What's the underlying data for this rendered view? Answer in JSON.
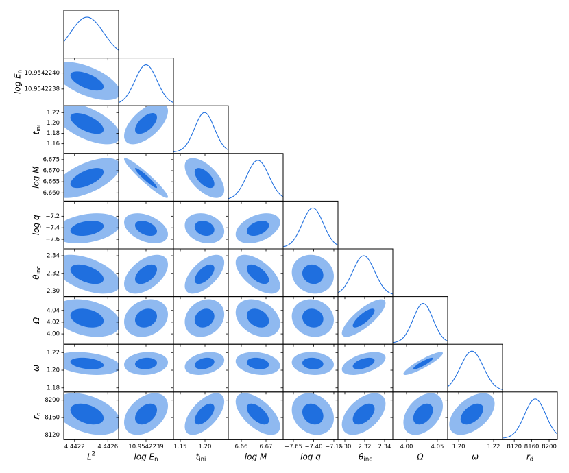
{
  "chart_data": {
    "type": "corner",
    "outer_color": "#8fb9f0",
    "inner_color": "#1f6fdf",
    "line_color": "#1f6fdf",
    "params": [
      {
        "label": {
          "text": "L",
          "sup": "2"
        },
        "xlim": [
          4.44207,
          4.44273
        ],
        "xticks": [
          4.4422,
          4.4426
        ],
        "mean": 4.44235,
        "sd": 0.0002
      },
      {
        "label": {
          "text": "log E",
          "sub": "n"
        },
        "xlim": [
          10.9542236,
          10.9542242
        ],
        "ylim": [
          10.95422359,
          10.95422419
        ],
        "xticks": [
          10.9542239
        ],
        "yticks": [
          {
            "value": 10.954224,
            "label": "10.9542240"
          },
          10.9542238
        ],
        "mean": 10.9542239,
        "sd": 1.2e-07
      },
      {
        "label": {
          "text": "t",
          "sub": "ini"
        },
        "xlim": [
          1.1361,
          1.2472
        ],
        "ylim": [
          1.1413,
          1.2333
        ],
        "xticks": [
          1.15,
          {
            "value": 1.2,
            "label": "1.20"
          }
        ],
        "yticks": [
          1.22,
          {
            "value": 1.2,
            "label": "1.20"
          },
          1.18,
          1.16
        ],
        "mean": 1.199,
        "sd": 0.02
      },
      {
        "label": {
          "text": "log M"
        },
        "xlim": [
          6.65472,
          6.67694
        ],
        "ylim": [
          6.65625,
          6.6778
        ],
        "xticks": [
          6.66,
          6.67
        ],
        "yticks": [
          6.675,
          {
            "value": 6.67,
            "label": "6.670"
          },
          6.665,
          {
            "value": 6.66,
            "label": "6.660"
          }
        ],
        "mean": 6.6667,
        "sd": 0.0045
      },
      {
        "label": {
          "text": "log q"
        },
        "xlim": [
          -7.777,
          -7.099
        ],
        "ylim": [
          -7.765,
          -6.94
        ],
        "xticks": [
          {
            "value": -7.65,
            "label": "−7.65"
          },
          {
            "value": -7.4,
            "label": "−7.40"
          },
          {
            "value": -7.15,
            "label": "−7.15"
          }
        ],
        "yticks": [
          {
            "value": -7.2,
            "label": "−7.2"
          },
          {
            "value": -7.4,
            "label": "−7.4"
          },
          {
            "value": -7.6,
            "label": "−7.6"
          }
        ],
        "mean": -7.41,
        "sd": 0.13
      },
      {
        "label": {
          "text": "θ",
          "sub": "inc"
        },
        "xlim": [
          2.2931,
          2.3483
        ],
        "ylim": [
          2.2937,
          2.3478
        ],
        "xticks": [
          {
            "value": 2.3,
            "label": "2.30"
          },
          2.32,
          2.34
        ],
        "yticks": [
          2.34,
          2.32,
          {
            "value": 2.3,
            "label": "2.30"
          }
        ],
        "mean": 2.319,
        "sd": 0.011
      },
      {
        "label": {
          "text": "Ω"
        },
        "xlim": [
          3.9778,
          4.0667
        ],
        "ylim": [
          3.9824,
          4.0635
        ],
        "xticks": [
          {
            "value": 4,
            "label": "4.00"
          },
          4.05
        ],
        "yticks": [
          4.04,
          4.02,
          {
            "value": 4,
            "label": "4.00"
          }
        ],
        "mean": 4.0269,
        "sd": 0.016
      },
      {
        "label": {
          "text": "ω"
        },
        "xlim": [
          1.1937,
          1.2251
        ],
        "ylim": [
          1.1753,
          1.2294
        ],
        "xticks": [
          {
            "value": 1.2,
            "label": "1.20"
          },
          1.22
        ],
        "yticks": [
          1.22,
          {
            "value": 1.2,
            "label": "1.20"
          },
          1.18
        ],
        "mean": 1.2076,
        "sd": 0.0065
      },
      {
        "label": {
          "text": "r",
          "sub": "d"
        },
        "xlim": [
          8093,
          8218.8
        ],
        "ylim": [
          8109,
          8218.8
        ],
        "xticks": [
          8120,
          8160,
          8200
        ],
        "yticks": [
          8200,
          8160,
          8120
        ],
        "mean": 8168,
        "sd": 24
      }
    ],
    "correlations": [
      [
        -0.6
      ],
      [
        -0.6,
        0.6
      ],
      [
        0.6,
        -0.95,
        -0.6
      ],
      [
        0.3,
        -0.4,
        -0.2,
        0.4
      ],
      [
        -0.5,
        0.5,
        0.6,
        -0.6,
        -0.1
      ],
      [
        -0.3,
        0.2,
        0.2,
        -0.3,
        -0.1,
        0.8
      ],
      [
        -0.3,
        0.1,
        0.3,
        -0.2,
        -0.1,
        0.5,
        0.9
      ],
      [
        -0.4,
        0.4,
        0.6,
        -0.6,
        -0.2,
        0.5,
        0.4,
        0.5
      ]
    ]
  }
}
